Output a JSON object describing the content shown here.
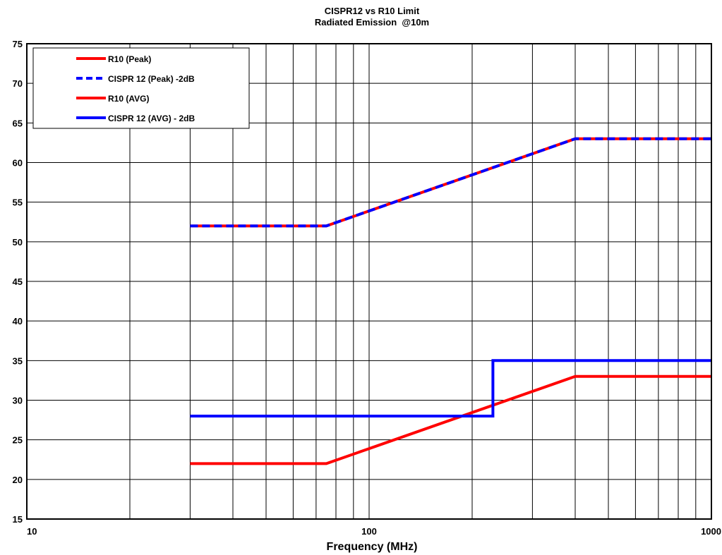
{
  "chart_data": {
    "type": "line",
    "title": "CISPR12 vs R10 Limit",
    "subtitle": "Radiated Emission  @10m",
    "xlabel": "Frequency (MHz)",
    "ylabel": "",
    "x_scale": "log",
    "xlim": [
      10,
      1000
    ],
    "ylim": [
      15,
      75
    ],
    "grid": true,
    "legend_position": "top-left",
    "x_ticks": [
      {
        "value": 10,
        "label": "10"
      },
      {
        "value": 100,
        "label": "100"
      },
      {
        "value": 1000,
        "label": "1000"
      }
    ],
    "y_ticks": [
      15,
      20,
      25,
      30,
      35,
      40,
      45,
      50,
      55,
      60,
      65,
      70,
      75
    ],
    "series": [
      {
        "name": "R10 (Peak)",
        "color": "#ff0000",
        "style": "solid",
        "points": [
          [
            30,
            52
          ],
          [
            75,
            52
          ],
          [
            400,
            63
          ],
          [
            1000,
            63
          ]
        ]
      },
      {
        "name": "CISPR 12 (Peak) -2dB",
        "color": "#0000ff",
        "style": "dashed",
        "points": [
          [
            30,
            52
          ],
          [
            75,
            52
          ],
          [
            400,
            63
          ],
          [
            1000,
            63
          ]
        ]
      },
      {
        "name": "R10 (AVG)",
        "color": "#ff0000",
        "style": "solid",
        "points": [
          [
            30,
            22
          ],
          [
            75,
            22
          ],
          [
            400,
            33
          ],
          [
            1000,
            33
          ]
        ]
      },
      {
        "name": "CISPR 12 (AVG) - 2dB",
        "color": "#0000ff",
        "style": "solid",
        "points": [
          [
            30,
            28
          ],
          [
            230,
            28
          ],
          [
            230,
            35
          ],
          [
            1000,
            35
          ]
        ]
      }
    ]
  }
}
